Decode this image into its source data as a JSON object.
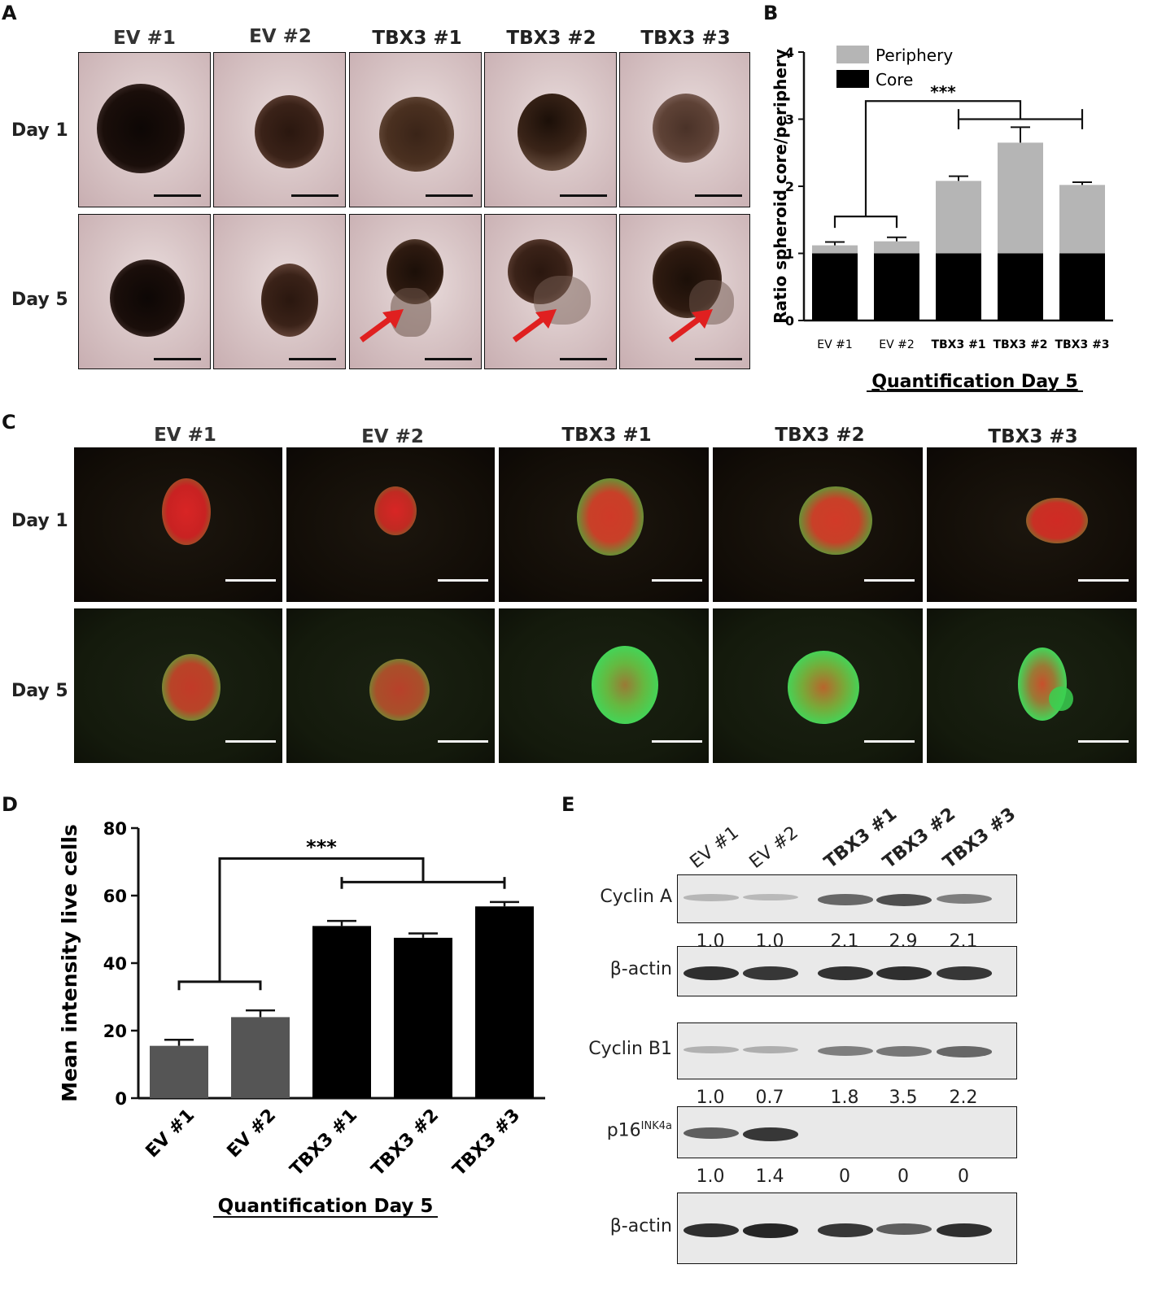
{
  "panels": {
    "a": "A",
    "b": "B",
    "c": "C",
    "d": "D",
    "e": "E"
  },
  "conditions": [
    "EV #1",
    "EV #2",
    "TBX3 #1",
    "TBX3 #2",
    "TBX3 #3"
  ],
  "days": [
    "Day 1",
    "Day 5"
  ],
  "colors": {
    "periphery": "#b5b5b5",
    "core": "#000000",
    "ev_bar": "#555555",
    "tbx3_bar": "#000000",
    "arrow": "#e02020",
    "fluor_green": "#3fd85a",
    "fluor_red": "#d82020"
  },
  "chart_data": [
    {
      "type": "bar",
      "panel": "B",
      "stacked": true,
      "categories": [
        "EV #1",
        "EV #2",
        "TBX3 #1",
        "TBX3 #2",
        "TBX3 #3"
      ],
      "series": [
        {
          "name": "Periphery",
          "values": [
            0.12,
            0.18,
            1.08,
            1.65,
            1.02
          ],
          "error": [
            0.05,
            0.06,
            0.07,
            0.23,
            0.04
          ]
        },
        {
          "name": "Core",
          "values": [
            1.0,
            1.0,
            1.0,
            1.0,
            1.0
          ]
        }
      ],
      "totals": [
        1.12,
        1.18,
        2.08,
        2.65,
        2.02
      ],
      "ylabel": "Ratio spheroid core/periphery",
      "xlabel": "Quantification Day 5",
      "ylim": [
        0,
        4
      ],
      "yticks": [
        0,
        1,
        2,
        3,
        4
      ],
      "legend": "top-left",
      "significance": "***"
    },
    {
      "type": "bar",
      "panel": "D",
      "categories": [
        "EV #1",
        "EV #2",
        "TBX3 #1",
        "TBX3 #2",
        "TBX3 #3"
      ],
      "values": [
        15.5,
        24,
        51,
        47.5,
        56.8
      ],
      "error": [
        1.8,
        2.0,
        1.5,
        1.3,
        1.3
      ],
      "ylabel": "Mean intensity live cells",
      "xlabel": "Quantification Day 5",
      "ylim": [
        0,
        80
      ],
      "yticks": [
        0,
        20,
        40,
        60,
        80
      ],
      "significance": "***"
    }
  ],
  "blots": {
    "lanes": [
      "EV #1",
      "EV #2",
      "TBX3 #1",
      "TBX3 #2",
      "TBX3 #3"
    ],
    "rows": [
      {
        "label": "Cyclin A",
        "quant": [
          "1.0",
          "1.0",
          "2.1",
          "2.9",
          "2.1"
        ],
        "intensity": [
          0.05,
          0.03,
          0.55,
          0.7,
          0.4
        ]
      },
      {
        "label": "β-actin",
        "quant": null,
        "intensity": [
          0.9,
          0.85,
          0.88,
          0.9,
          0.85
        ]
      },
      {
        "label": "Cyclin B1",
        "quant": [
          "1.0",
          "0.7",
          "1.8",
          "3.5",
          "2.2"
        ],
        "intensity": [
          0.08,
          0.1,
          0.4,
          0.45,
          0.55
        ]
      },
      {
        "label": "p16",
        "label_sup": "INK4a",
        "quant": [
          "1.0",
          "1.4",
          "0",
          "0",
          "0"
        ],
        "intensity": [
          0.6,
          0.85,
          0,
          0,
          0
        ]
      },
      {
        "label": "β-actin",
        "quant": null,
        "intensity": [
          0.9,
          0.95,
          0.85,
          0.6,
          0.9
        ]
      }
    ]
  }
}
